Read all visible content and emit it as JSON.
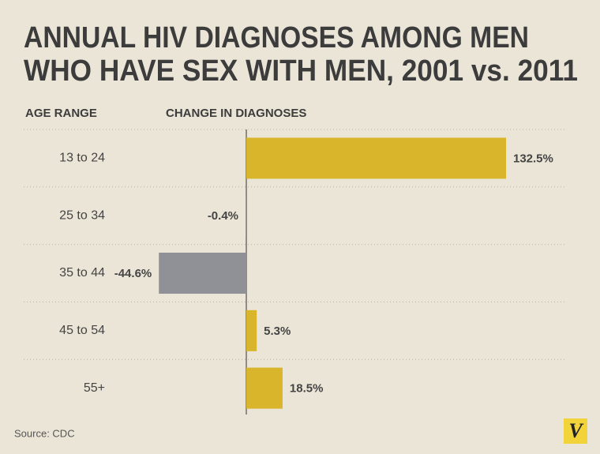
{
  "chart_data": {
    "type": "bar",
    "orientation": "horizontal",
    "title": [
      "ANNUAL HIV DIAGNOSES AMONG MEN",
      "WHO HAVE SEX WITH MEN, 2001 vs. 2011"
    ],
    "y_label": "AGE RANGE",
    "x_label": "CHANGE IN DIAGNOSES",
    "categories": [
      "13 to 24",
      "25 to 34",
      "35 to 44",
      "45 to 54",
      "55+"
    ],
    "values": [
      132.5,
      -0.4,
      -44.6,
      5.3,
      18.5
    ],
    "value_labels": [
      "132.5%",
      "-0.4%",
      "-44.6%",
      "5.3%",
      "18.5%"
    ],
    "colors": [
      "#d9b52c",
      "#8f9196",
      "#8f9196",
      "#d9b52c",
      "#d9b52c"
    ],
    "source": "Source: CDC",
    "logo": "V"
  }
}
